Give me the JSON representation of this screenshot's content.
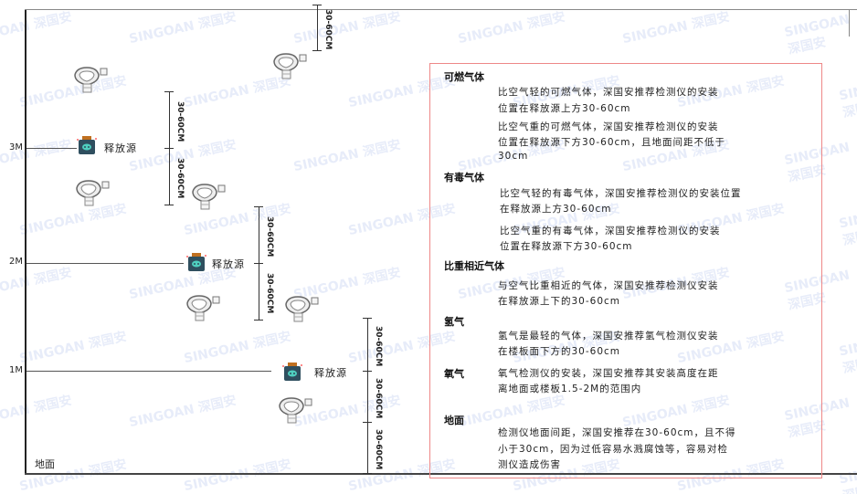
{
  "levels": {
    "m3": "3M",
    "m2": "2M",
    "m1": "1M",
    "ground": "地面"
  },
  "source_label": "释放源",
  "dim_label": "30-60CM",
  "watermark": "SINGOAN 深国安",
  "colors": {
    "frame_border": "#e88888",
    "source_body": "#2f4f5f",
    "source_cap": "#c07020",
    "source_face": "#4fd0c0"
  },
  "notes": {
    "flammable": {
      "title": "可燃气体",
      "lighter": [
        "比空气轻的可燃气体，深国安推荐检测仪的安装",
        "位置在释放源上方30-60cm"
      ],
      "heavier": [
        "比空气重的可燃气体，深国安推荐检测仪的安装",
        "位置在释放源下方30-60cm，且地面间距不低于",
        "30cm"
      ]
    },
    "toxic": {
      "title": "有毒气体",
      "lighter": [
        "比空气轻的有毒气体，深国安推荐检测仪的安装位置",
        "在释放源上方30-60cm"
      ],
      "heavier": [
        "比空气重的有毒气体，深国安推荐检测仪的安装",
        "位置在释放源下方30-60cm"
      ]
    },
    "similar": {
      "title": "比重相近气体",
      "text": [
        "与空气比重相近的气体，深国安推荐检测仪安装",
        "在释放源上下的30-60cm"
      ]
    },
    "hydrogen": {
      "title": "氢气",
      "text": [
        "氢气是最轻的气体，深国安推荐氢气检测仪安装",
        "在楼板面下方的30-60cm"
      ]
    },
    "oxygen": {
      "title": "氧气",
      "text": [
        "氧气检测仪的安装，深国安推荐其安装高度在距",
        "离地面或楼板1.5-2M的范围内"
      ]
    },
    "ground": {
      "title": "地面",
      "text": [
        "检测仪地面间距，深国安推荐在30-60cm，且不得",
        "小于30cm，因为过低容易水溅腐蚀等，容易对检",
        "测仪造成伤害"
      ]
    }
  }
}
